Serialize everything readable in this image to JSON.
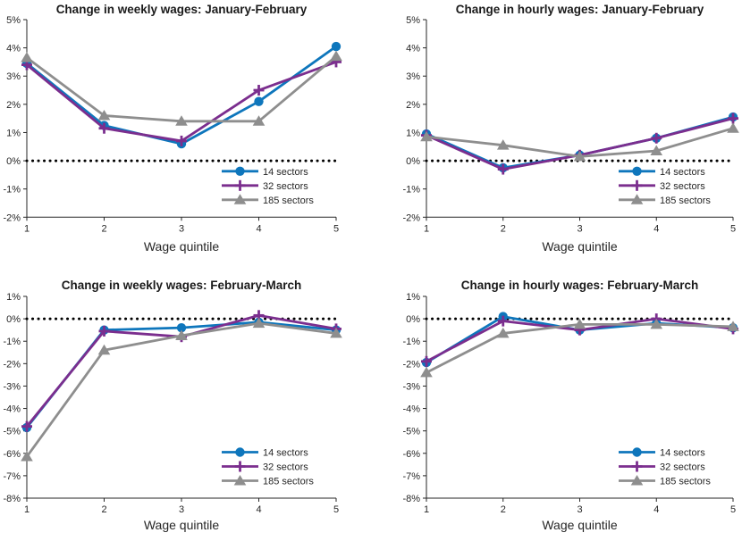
{
  "colors": {
    "background": "#ffffff",
    "axis": "#262626",
    "title": "#1a1a1a",
    "zero_line": "#000000",
    "series_blue": "#0e76bc",
    "series_purple": "#7b2e8e",
    "series_gray": "#8e8e8e"
  },
  "chart_data": [
    {
      "type": "line",
      "title": "Change in weekly wages: January-February",
      "xlabel": "Wage quintile",
      "x": [
        1,
        2,
        3,
        4,
        5
      ],
      "x_tick_labels": [
        "1",
        "2",
        "3",
        "4",
        "5"
      ],
      "ylim": [
        -2,
        5
      ],
      "y_ticks": [
        5,
        4,
        3,
        2,
        1,
        0,
        -1,
        -2
      ],
      "y_tick_labels": [
        "5%",
        "4%",
        "3%",
        "2%",
        "1%",
        "0%",
        "-1%",
        "-2%"
      ],
      "grid": false,
      "zero_line_dotted": true,
      "legend_position": "lower right",
      "series": [
        {
          "name": "14 sectors",
          "marker": "circle",
          "color": "#0e76bc",
          "values": [
            3.45,
            1.25,
            0.6,
            2.1,
            4.05
          ]
        },
        {
          "name": "32 sectors",
          "marker": "plus",
          "color": "#7b2e8e",
          "values": [
            3.4,
            1.15,
            0.7,
            2.5,
            3.5
          ]
        },
        {
          "name": "185 sectors",
          "marker": "triangle",
          "color": "#8e8e8e",
          "values": [
            3.65,
            1.6,
            1.4,
            1.4,
            3.7
          ]
        }
      ]
    },
    {
      "type": "line",
      "title": "Change in hourly wages: January-February",
      "xlabel": "Wage quintile",
      "x": [
        1,
        2,
        3,
        4,
        5
      ],
      "x_tick_labels": [
        "1",
        "2",
        "3",
        "4",
        "5"
      ],
      "ylim": [
        -2,
        5
      ],
      "y_ticks": [
        5,
        4,
        3,
        2,
        1,
        0,
        -1,
        -2
      ],
      "y_tick_labels": [
        "5%",
        "4%",
        "3%",
        "2%",
        "1%",
        "0%",
        "-1%",
        "-2%"
      ],
      "grid": false,
      "zero_line_dotted": true,
      "legend_position": "lower right",
      "series": [
        {
          "name": "14 sectors",
          "marker": "circle",
          "color": "#0e76bc",
          "values": [
            0.95,
            -0.25,
            0.2,
            0.8,
            1.55
          ]
        },
        {
          "name": "32 sectors",
          "marker": "plus",
          "color": "#7b2e8e",
          "values": [
            0.9,
            -0.3,
            0.2,
            0.8,
            1.5
          ]
        },
        {
          "name": "185 sectors",
          "marker": "triangle",
          "color": "#8e8e8e",
          "values": [
            0.85,
            0.55,
            0.15,
            0.35,
            1.15
          ]
        }
      ]
    },
    {
      "type": "line",
      "title": "Change in weekly wages: February-March",
      "xlabel": "Wage quintile",
      "x": [
        1,
        2,
        3,
        4,
        5
      ],
      "x_tick_labels": [
        "1",
        "2",
        "3",
        "4",
        "5"
      ],
      "ylim": [
        -8,
        1
      ],
      "y_ticks": [
        1,
        0,
        -1,
        -2,
        -3,
        -4,
        -5,
        -6,
        -7,
        -8
      ],
      "y_tick_labels": [
        "1%",
        "0%",
        "-1%",
        "-2%",
        "-3%",
        "-4%",
        "-5%",
        "-6%",
        "-7%",
        "-8%"
      ],
      "grid": false,
      "zero_line_dotted": true,
      "legend_position": "lower right",
      "series": [
        {
          "name": "14 sectors",
          "marker": "circle",
          "color": "#0e76bc",
          "values": [
            -4.85,
            -0.5,
            -0.4,
            -0.15,
            -0.5
          ]
        },
        {
          "name": "32 sectors",
          "marker": "plus",
          "color": "#7b2e8e",
          "values": [
            -4.8,
            -0.55,
            -0.8,
            0.15,
            -0.45
          ]
        },
        {
          "name": "185 sectors",
          "marker": "triangle",
          "color": "#8e8e8e",
          "values": [
            -6.15,
            -1.4,
            -0.75,
            -0.2,
            -0.65
          ]
        }
      ]
    },
    {
      "type": "line",
      "title": "Change in hourly wages: February-March",
      "xlabel": "Wage quintile",
      "x": [
        1,
        2,
        3,
        4,
        5
      ],
      "x_tick_labels": [
        "1",
        "2",
        "3",
        "4",
        "5"
      ],
      "ylim": [
        -8,
        1
      ],
      "y_ticks": [
        1,
        0,
        -1,
        -2,
        -3,
        -4,
        -5,
        -6,
        -7,
        -8
      ],
      "y_tick_labels": [
        "1%",
        "0%",
        "-1%",
        "-2%",
        "-3%",
        "-4%",
        "-5%",
        "-6%",
        "-7%",
        "-8%"
      ],
      "grid": false,
      "zero_line_dotted": true,
      "legend_position": "lower right",
      "series": [
        {
          "name": "14 sectors",
          "marker": "circle",
          "color": "#0e76bc",
          "values": [
            -1.95,
            0.1,
            -0.5,
            -0.2,
            -0.4
          ]
        },
        {
          "name": "32 sectors",
          "marker": "plus",
          "color": "#7b2e8e",
          "values": [
            -1.9,
            -0.1,
            -0.5,
            0.0,
            -0.45
          ]
        },
        {
          "name": "185 sectors",
          "marker": "triangle",
          "color": "#8e8e8e",
          "values": [
            -2.4,
            -0.65,
            -0.25,
            -0.25,
            -0.35
          ]
        }
      ]
    }
  ]
}
